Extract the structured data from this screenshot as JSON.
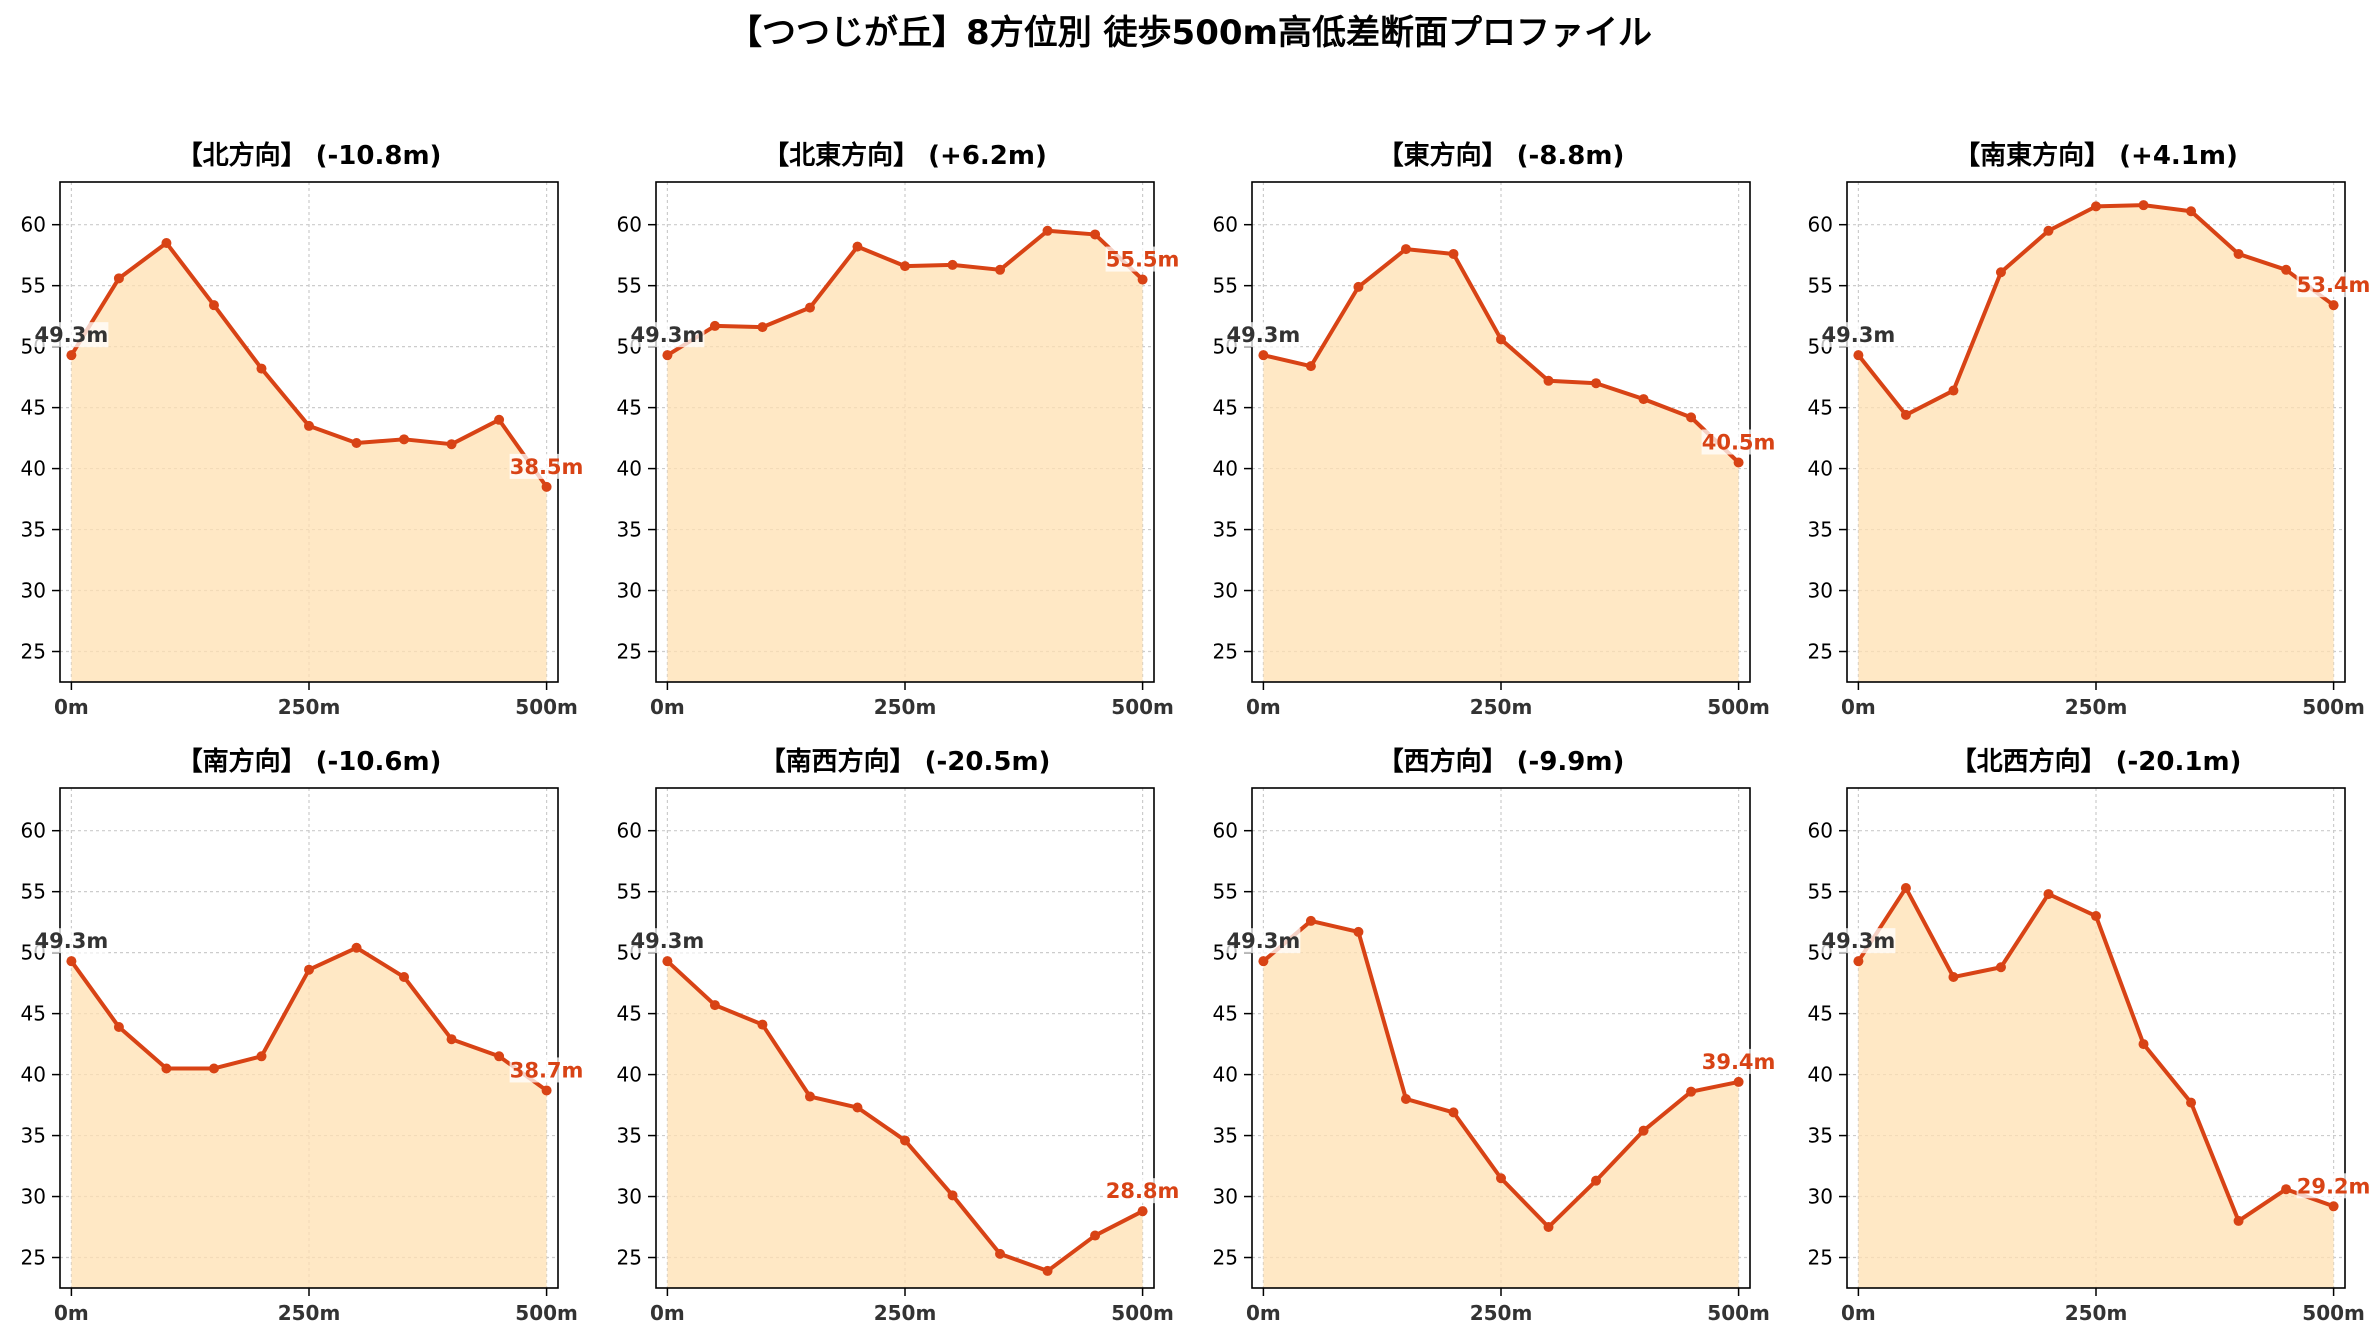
{
  "chart_data": {
    "title": "【つつじが丘】8方位別 徒歩500m高低差断面プロファイル",
    "type": "line",
    "colors": {
      "line": "#d84315",
      "fill": "#ffe0b2",
      "start_label": "#333333",
      "end_label": "#d84315",
      "grid": "#cccccc"
    },
    "grid": true,
    "ylim": [
      22.5,
      63.5
    ],
    "yticks": [
      25,
      30,
      35,
      40,
      45,
      50,
      55,
      60
    ],
    "xlim": [
      -12,
      512
    ],
    "xticks": [
      0,
      250,
      500
    ],
    "xtick_labels": [
      "0m",
      "250m",
      "500m"
    ],
    "panels": [
      {
        "title": "【北方向】 (-10.8m)",
        "x": [
          0,
          50,
          100,
          150,
          200,
          250,
          300,
          350,
          400,
          450,
          500
        ],
        "y": [
          49.3,
          55.6,
          58.5,
          53.4,
          48.2,
          43.5,
          42.1,
          42.4,
          42.0,
          44.0,
          38.5
        ],
        "start_label": "49.3m",
        "end_label": "38.5m"
      },
      {
        "title": "【北東方向】 (+6.2m)",
        "x": [
          0,
          50,
          100,
          150,
          200,
          250,
          300,
          350,
          400,
          450,
          500
        ],
        "y": [
          49.3,
          51.7,
          51.6,
          53.2,
          58.2,
          56.6,
          56.7,
          56.3,
          59.5,
          59.2,
          55.5
        ],
        "start_label": "49.3m",
        "end_label": "55.5m"
      },
      {
        "title": "【東方向】 (-8.8m)",
        "x": [
          0,
          50,
          100,
          150,
          200,
          250,
          300,
          350,
          400,
          450,
          500
        ],
        "y": [
          49.3,
          48.4,
          54.9,
          58.0,
          57.6,
          50.6,
          47.2,
          47.0,
          45.7,
          44.2,
          40.5
        ],
        "start_label": "49.3m",
        "end_label": "40.5m"
      },
      {
        "title": "【南東方向】 (+4.1m)",
        "x": [
          0,
          50,
          100,
          150,
          200,
          250,
          300,
          350,
          400,
          450,
          500
        ],
        "y": [
          49.3,
          44.4,
          46.4,
          56.1,
          59.5,
          61.5,
          61.6,
          61.1,
          57.6,
          56.3,
          53.4
        ],
        "start_label": "49.3m",
        "end_label": "53.4m"
      },
      {
        "title": "【南方向】 (-10.6m)",
        "x": [
          0,
          50,
          100,
          150,
          200,
          250,
          300,
          350,
          400,
          450,
          500
        ],
        "y": [
          49.3,
          43.9,
          40.5,
          40.5,
          41.5,
          48.6,
          50.4,
          48.0,
          42.9,
          41.5,
          38.7
        ],
        "start_label": "49.3m",
        "end_label": "38.7m"
      },
      {
        "title": "【南西方向】 (-20.5m)",
        "x": [
          0,
          50,
          100,
          150,
          200,
          250,
          300,
          350,
          400,
          450,
          500
        ],
        "y": [
          49.3,
          45.7,
          44.1,
          38.2,
          37.3,
          34.6,
          30.1,
          25.3,
          23.9,
          26.8,
          28.8
        ],
        "start_label": "49.3m",
        "end_label": "28.8m"
      },
      {
        "title": "【西方向】 (-9.9m)",
        "x": [
          0,
          50,
          100,
          150,
          200,
          250,
          300,
          350,
          400,
          450,
          500
        ],
        "y": [
          49.3,
          52.6,
          51.7,
          38.0,
          36.9,
          31.5,
          27.5,
          31.3,
          35.4,
          38.6,
          39.4
        ],
        "start_label": "49.3m",
        "end_label": "39.4m"
      },
      {
        "title": "【北西方向】 (-20.1m)",
        "x": [
          0,
          50,
          100,
          150,
          200,
          250,
          300,
          350,
          400,
          450,
          500
        ],
        "y": [
          49.3,
          55.3,
          48.0,
          48.8,
          54.8,
          53.0,
          42.5,
          37.7,
          28.0,
          30.6,
          29.2
        ],
        "start_label": "49.3m",
        "end_label": "29.2m"
      }
    ]
  }
}
